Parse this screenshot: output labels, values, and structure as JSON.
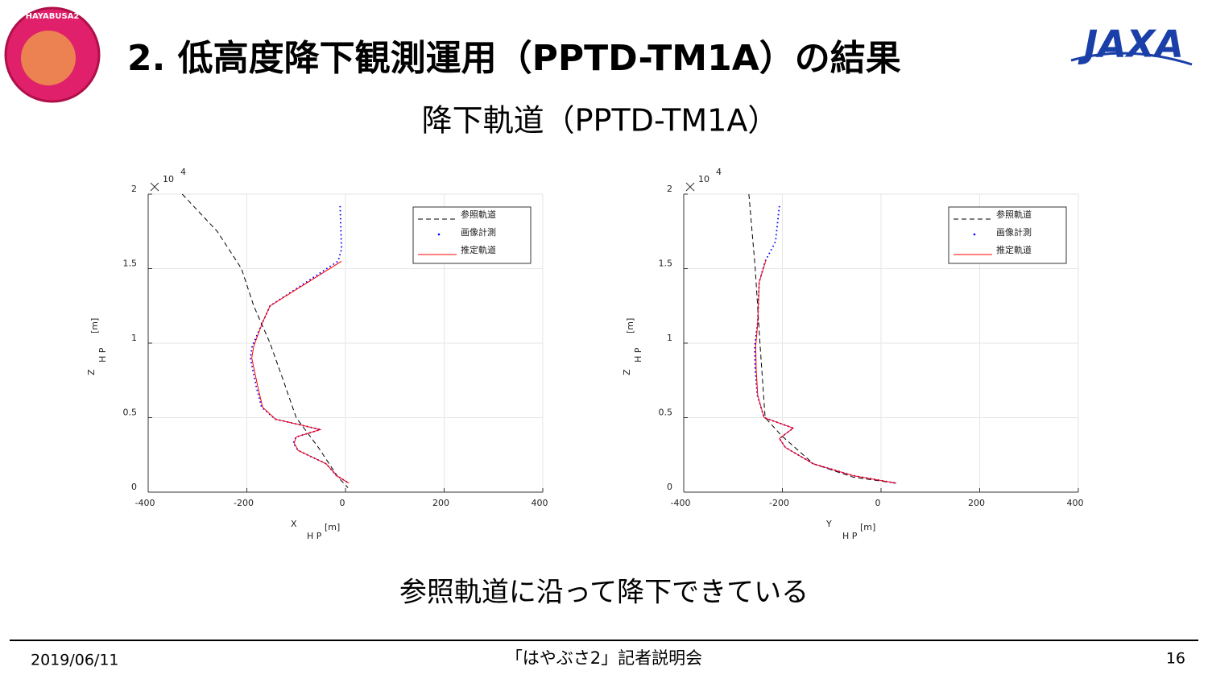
{
  "title": "2. 低高度降下観測運用（PPTD-TM1A）の結果",
  "subtitle": "降下軌道（PPTD-TM1A）",
  "caption": "参照軌道に沿って降下できている",
  "logos": {
    "mission": "HAYABUSA2",
    "agency": "JAXA"
  },
  "footer": {
    "date": "2019/06/11",
    "event": "「はやぶさ2」記者説明会",
    "page": "16"
  },
  "chart_data": [
    {
      "type": "line",
      "xlim": [
        -400,
        400
      ],
      "xticks": [
        -400,
        -200,
        0,
        200,
        400
      ],
      "ylim": [
        0,
        2
      ],
      "yticks": [
        0,
        0.5,
        1,
        1.5,
        2
      ],
      "y_multiplier": "10",
      "y_exponent": "4",
      "xlabel": "X",
      "xlabel_sub": "H P",
      "xlabel_unit": "[m]",
      "ylabel": "Z",
      "ylabel_sub": "H P",
      "ylabel_unit": "[m]",
      "grid": true,
      "legend": "upper right",
      "series": [
        {
          "name": "参照軌道",
          "color": "#000000",
          "style": "dashed",
          "x": [
            -331,
            -260,
            -211,
            -186,
            -153,
            -126,
            -100,
            -55,
            -15,
            5
          ],
          "values": [
            2.0,
            1.75,
            1.5,
            1.25,
            1.0,
            0.75,
            0.5,
            0.3,
            0.1,
            0.03
          ]
        },
        {
          "name": "画像計測",
          "color": "#0000ff",
          "style": "dotted",
          "x": [
            -11,
            -8,
            -15,
            -153,
            -168,
            -189,
            -193,
            -181,
            -170,
            -142,
            -51,
            -100,
            -106,
            -96,
            -39,
            -18,
            7
          ],
          "values": [
            1.92,
            1.63,
            1.55,
            1.25,
            1.14,
            0.98,
            0.9,
            0.71,
            0.57,
            0.49,
            0.42,
            0.37,
            0.33,
            0.28,
            0.19,
            0.11,
            0.06
          ]
        },
        {
          "name": "推定軌道",
          "color": "#ff0000",
          "style": "solid",
          "x": [
            -8,
            -153,
            -168,
            -186,
            -190,
            -178,
            -168,
            -142,
            -51,
            -100,
            -104,
            -96,
            -39,
            -18,
            7
          ],
          "values": [
            1.55,
            1.25,
            1.14,
            0.98,
            0.9,
            0.71,
            0.57,
            0.49,
            0.42,
            0.37,
            0.33,
            0.28,
            0.19,
            0.11,
            0.06
          ]
        }
      ]
    },
    {
      "type": "line",
      "xlim": [
        -400,
        400
      ],
      "xticks": [
        -400,
        -200,
        0,
        200,
        400
      ],
      "ylim": [
        0,
        2
      ],
      "yticks": [
        0,
        0.5,
        1,
        1.5,
        2
      ],
      "y_multiplier": "10",
      "y_exponent": "4",
      "xlabel": "Y",
      "xlabel_sub": "H P",
      "xlabel_unit": "[m]",
      "ylabel": "Z",
      "ylabel_sub": "H P",
      "ylabel_unit": "[m]",
      "grid": true,
      "legend": "upper right",
      "series": [
        {
          "name": "参照軌道",
          "color": "#000000",
          "style": "dashed",
          "x": [
            -268,
            -255,
            -245,
            -235,
            -202,
            -137,
            -56,
            31
          ],
          "values": [
            2.0,
            1.5,
            0.98,
            0.5,
            0.38,
            0.19,
            0.1,
            0.06
          ]
        },
        {
          "name": "画像計測",
          "color": "#0000ff",
          "style": "dotted",
          "x": [
            -206,
            -214,
            -235,
            -247,
            -250,
            -256,
            -255,
            -251,
            -237,
            -178,
            -206,
            -194,
            -137,
            -56,
            31
          ],
          "values": [
            1.92,
            1.68,
            1.55,
            1.41,
            1.14,
            0.98,
            0.82,
            0.65,
            0.5,
            0.43,
            0.36,
            0.3,
            0.19,
            0.11,
            0.06
          ]
        },
        {
          "name": "推定軌道",
          "color": "#ff0000",
          "style": "solid",
          "x": [
            -233,
            -247,
            -250,
            -254,
            -253,
            -250,
            -237,
            -178,
            -206,
            -194,
            -137,
            -56,
            31
          ],
          "values": [
            1.56,
            1.41,
            1.14,
            0.98,
            0.82,
            0.65,
            0.5,
            0.43,
            0.36,
            0.3,
            0.19,
            0.11,
            0.06
          ]
        }
      ]
    }
  ]
}
